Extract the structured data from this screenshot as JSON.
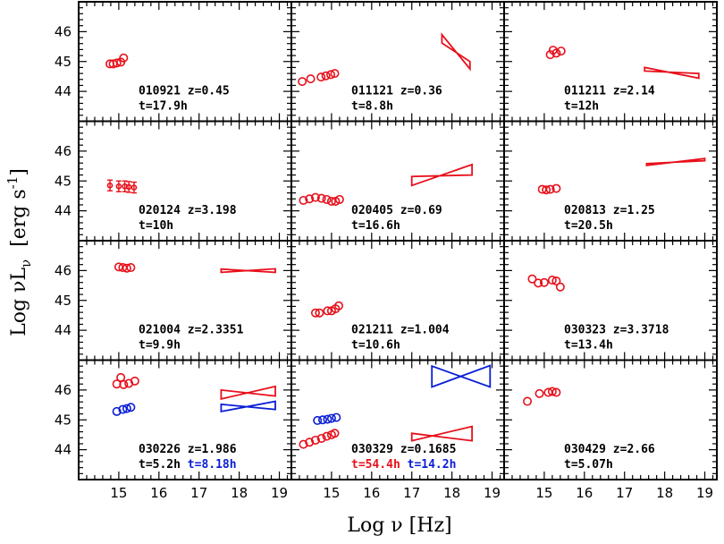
{
  "figure": {
    "xlabel": "Log ν  [Hz]",
    "ylabel_main": "Log νL",
    "ylabel_sub": "ν",
    "ylabel_units": "  [erg s",
    "ylabel_exp": "-1",
    "ylabel_close": "]",
    "colors": {
      "red": "#e8101b",
      "blue": "#0a1ed6",
      "axis": "#000000"
    }
  },
  "chart_data": {
    "type": "scatter",
    "xlabel": "Log ν [Hz]",
    "ylabel": "Log νLν [erg s-1]",
    "xlim": [
      14,
      19.3
    ],
    "x_ticks": [
      "15",
      "16",
      "17",
      "18",
      "19"
    ],
    "rows": [
      {
        "ylim": [
          43,
          47
        ],
        "y_ticks": [
          "44",
          "45",
          "46"
        ]
      },
      {
        "ylim": [
          43,
          47
        ],
        "y_ticks": [
          "44",
          "45",
          "46"
        ]
      },
      {
        "ylim": [
          43,
          47
        ],
        "y_ticks": [
          "44",
          "45",
          "46"
        ]
      },
      {
        "ylim": [
          43,
          47
        ],
        "y_ticks": [
          "44",
          "45",
          "46"
        ]
      }
    ],
    "panels": [
      {
        "grb": "010921",
        "z": "z=0.45",
        "t": [
          {
            "text": "t=17.9h",
            "color": "black"
          }
        ],
        "points": [
          {
            "color": "red",
            "x": [
              14.78,
              14.86,
              14.95,
              15.05,
              15.12
            ],
            "y": [
              44.92,
              44.92,
              44.95,
              44.98,
              45.12
            ]
          }
        ],
        "bowties": []
      },
      {
        "grb": "011121",
        "z": "z=0.36",
        "t": [
          {
            "text": "t=8.8h",
            "color": "black"
          }
        ],
        "points": [
          {
            "color": "red",
            "x": [
              14.27,
              14.48,
              14.74,
              14.86,
              14.98,
              15.08
            ],
            "y": [
              44.33,
              44.42,
              44.48,
              44.52,
              44.56,
              44.6
            ]
          }
        ],
        "bowties": [
          {
            "color": "red",
            "x1": 17.75,
            "x2": 18.45,
            "y1a": 45.62,
            "y1b": 45.9,
            "y2a": 44.75,
            "y2b": 45.0
          }
        ]
      },
      {
        "grb": "011211",
        "z": "z=2.14",
        "t": [
          {
            "text": "t=12h",
            "color": "black"
          }
        ],
        "points": [
          {
            "color": "red",
            "x": [
              15.15,
              15.22,
              15.3,
              15.42
            ],
            "y": [
              45.23,
              45.38,
              45.28,
              45.35
            ]
          }
        ],
        "bowties": [
          {
            "color": "red",
            "x1": 17.5,
            "x2": 18.85,
            "y1a": 44.68,
            "y1b": 44.8,
            "y2a": 44.44,
            "y2b": 44.6
          }
        ]
      },
      {
        "grb": "020124",
        "z": "z=3.198",
        "t": [
          {
            "text": "t=10h",
            "color": "black"
          }
        ],
        "points": [
          {
            "color": "red",
            "x": [
              14.78,
              15.0,
              15.15,
              15.25,
              15.38
            ],
            "y": [
              44.85,
              44.82,
              44.82,
              44.8,
              44.78
            ],
            "errors": true
          }
        ],
        "bowties": []
      },
      {
        "grb": "020405",
        "z": "z=0.69",
        "t": [
          {
            "text": "t=16.6h",
            "color": "black"
          }
        ],
        "points": [
          {
            "color": "red",
            "x": [
              14.3,
              14.45,
              14.6,
              14.75,
              14.88,
              15.0,
              15.1,
              15.2
            ],
            "y": [
              44.35,
              44.4,
              44.45,
              44.42,
              44.38,
              44.32,
              44.32,
              44.38
            ]
          }
        ],
        "bowties": [
          {
            "color": "red",
            "x1": 17.0,
            "x2": 18.5,
            "y1a": 44.85,
            "y1b": 45.15,
            "y2a": 45.2,
            "y2b": 45.55
          }
        ]
      },
      {
        "grb": "020813",
        "z": "z=1.25",
        "t": [
          {
            "text": "t=20.5h",
            "color": "black"
          }
        ],
        "points": [
          {
            "color": "red",
            "x": [
              14.95,
              15.05,
              15.15,
              15.3
            ],
            "y": [
              44.72,
              44.7,
              44.72,
              44.75
            ]
          }
        ],
        "bowties": [
          {
            "color": "red",
            "x1": 17.55,
            "x2": 19.0,
            "y1a": 45.52,
            "y1b": 45.58,
            "y2a": 45.68,
            "y2b": 45.75
          }
        ]
      },
      {
        "grb": "021004",
        "z": "z=2.3351",
        "t": [
          {
            "text": "t=9.9h",
            "color": "black"
          }
        ],
        "points": [
          {
            "color": "red",
            "x": [
              15.0,
              15.1,
              15.2,
              15.3
            ],
            "y": [
              46.12,
              46.1,
              46.08,
              46.1
            ]
          }
        ],
        "bowties": [
          {
            "color": "red",
            "x1": 17.55,
            "x2": 18.9,
            "y1a": 45.94,
            "y1b": 46.05,
            "y2a": 45.94,
            "y2b": 46.06
          }
        ]
      },
      {
        "grb": "021211",
        "z": "z=1.004",
        "t": [
          {
            "text": "t=10.6h",
            "color": "black"
          }
        ],
        "points": [
          {
            "color": "red",
            "x": [
              14.6,
              14.7,
              14.9,
              15.0,
              15.1,
              15.18
            ],
            "y": [
              44.58,
              44.58,
              44.65,
              44.65,
              44.72,
              44.82
            ]
          }
        ],
        "bowties": []
      },
      {
        "grb": "030323",
        "z": "z=3.3718",
        "t": [
          {
            "text": "t=13.4h",
            "color": "black"
          }
        ],
        "points": [
          {
            "color": "red",
            "x": [
              14.7,
              14.85,
              15.0,
              15.2,
              15.3,
              15.4
            ],
            "y": [
              45.72,
              45.58,
              45.6,
              45.68,
              45.65,
              45.45
            ]
          }
        ],
        "bowties": []
      },
      {
        "grb": "030226",
        "z": "z=1.986",
        "t": [
          {
            "text": "t=5.2h",
            "color": "black"
          },
          {
            "text": "t=8.18h",
            "color": "blue"
          }
        ],
        "points": [
          {
            "color": "red",
            "x": [
              14.95,
              15.05,
              15.12,
              15.25,
              15.4
            ],
            "y": [
              46.2,
              46.42,
              46.18,
              46.22,
              46.3
            ]
          },
          {
            "color": "blue",
            "x": [
              14.95,
              15.1,
              15.2,
              15.3
            ],
            "y": [
              45.28,
              45.35,
              45.38,
              45.42
            ]
          }
        ],
        "bowties": [
          {
            "color": "red",
            "x1": 17.55,
            "x2": 18.9,
            "y1a": 45.7,
            "y1b": 46.0,
            "y2a": 45.8,
            "y2b": 46.12
          },
          {
            "color": "blue",
            "x1": 17.55,
            "x2": 18.9,
            "y1a": 45.28,
            "y1b": 45.52,
            "y2a": 45.35,
            "y2b": 45.62
          }
        ]
      },
      {
        "grb": "030329",
        "z": "z=0.1685",
        "t": [
          {
            "text": "t=54.4h",
            "color": "red"
          },
          {
            "text": "t=14.2h",
            "color": "blue"
          }
        ],
        "points": [
          {
            "color": "red",
            "x": [
              14.3,
              14.45,
              14.6,
              14.75,
              14.88,
              15.0,
              15.08
            ],
            "y": [
              44.18,
              44.25,
              44.32,
              44.38,
              44.45,
              44.5,
              44.55
            ]
          },
          {
            "color": "blue",
            "x": [
              14.65,
              14.78,
              14.9,
              15.0,
              15.12
            ],
            "y": [
              44.98,
              45.0,
              45.02,
              45.05,
              45.08
            ]
          }
        ],
        "bowties": [
          {
            "color": "red",
            "x1": 17.0,
            "x2": 18.5,
            "y1a": 44.3,
            "y1b": 44.55,
            "y2a": 44.3,
            "y2b": 44.78
          },
          {
            "color": "blue",
            "x1": 17.5,
            "x2": 18.95,
            "y1a": 46.1,
            "y1b": 46.8,
            "y2a": 46.1,
            "y2b": 46.82
          }
        ]
      },
      {
        "grb": "030429",
        "z": "z=2.66",
        "t": [
          {
            "text": "t=5.07h",
            "color": "black"
          }
        ],
        "points": [
          {
            "color": "red",
            "x": [
              14.58,
              14.88,
              15.1,
              15.2,
              15.3
            ],
            "y": [
              45.62,
              45.88,
              45.92,
              45.95,
              45.92
            ]
          }
        ],
        "bowties": []
      }
    ]
  }
}
